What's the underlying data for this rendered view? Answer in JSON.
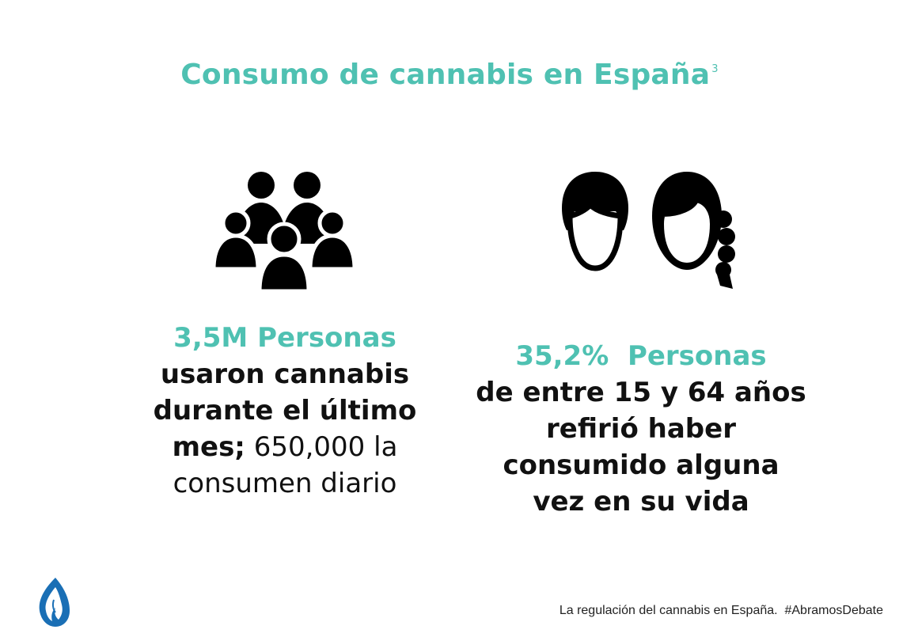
{
  "slide": {
    "title": "Consumo de cannabis en España",
    "title_footnote": "3"
  },
  "left_stat": {
    "headline": "3,5M Personas",
    "line1": "usaron cannabis",
    "line2": "durante el último",
    "line3_bold": "mes;",
    "line3_light": " 650,000 la",
    "line4_light": "consumen diario",
    "icon": "group-of-people-icon"
  },
  "right_stat": {
    "headline": "35,2%  Personas",
    "line1": "de entre 15 y 64 años",
    "line2": "refirió haber",
    "line3": "consumido alguna",
    "line4": "vez en su vida",
    "icon": "man-and-woman-icon"
  },
  "footer": {
    "text": "La regulación del cannabis en España.  #AbramosDebate",
    "logo": "leaf-face-logo-icon"
  },
  "colors": {
    "accent": "#4fc1b2",
    "text": "#111111",
    "logo": "#1a6fb5"
  }
}
